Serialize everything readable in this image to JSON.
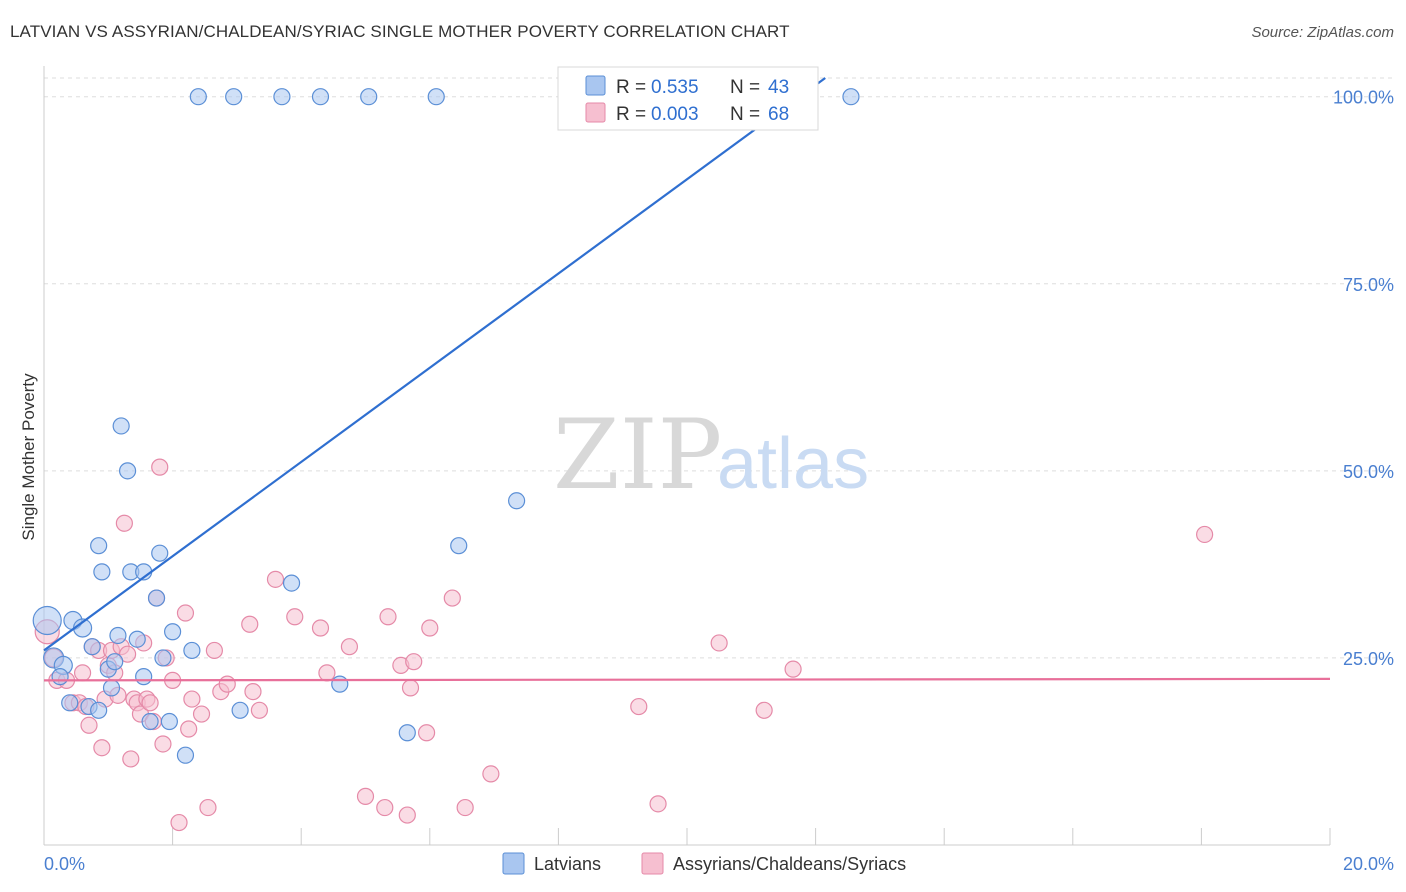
{
  "header": {
    "title": "LATVIAN VS ASSYRIAN/CHALDEAN/SYRIAC SINGLE MOTHER POVERTY CORRELATION CHART",
    "source": "Source: ZipAtlas.com"
  },
  "watermark": {
    "zip": "ZIP",
    "atlas": "atlas"
  },
  "colors": {
    "latvians_fill": "#a9c6f0",
    "latvians_stroke": "#5b8fd6",
    "latvians_line": "#2f6fd0",
    "assyrians_fill": "#f6bfd0",
    "assyrians_stroke": "#e58aa8",
    "assyrians_line": "#e8709a",
    "tick_label": "#4a7fd0",
    "grid": "#dddddd"
  },
  "legend": {
    "rows": [
      {
        "r_label": "R = ",
        "r_value": "0.535",
        "n_label": "N = ",
        "n_value": "43"
      },
      {
        "r_label": "R = ",
        "r_value": "0.003",
        "n_label": "N = ",
        "n_value": "68"
      }
    ]
  },
  "chart_data": {
    "type": "scatter",
    "title": "LATVIAN VS ASSYRIAN/CHALDEAN/SYRIAC SINGLE MOTHER POVERTY CORRELATION CHART",
    "xlabel": "",
    "ylabel": "Single Mother Poverty",
    "xlim": [
      0,
      20
    ],
    "ylim": [
      0,
      102.5
    ],
    "x_ticks": [
      0,
      2,
      4,
      6,
      8,
      10,
      12,
      14,
      16,
      18,
      20
    ],
    "x_tick_labels": [
      {
        "value": 0,
        "label": "0.0%"
      },
      {
        "value": 20,
        "label": "20.0%"
      }
    ],
    "y_ticks": [
      {
        "value": 25,
        "label": "25.0%"
      },
      {
        "value": 50,
        "label": "50.0%"
      },
      {
        "value": 75,
        "label": "75.0%"
      },
      {
        "value": 100,
        "label": "100.0%"
      }
    ],
    "grid": "horizontal dashed",
    "legend_position": "top-center",
    "series": [
      {
        "name": "Latvians",
        "r": 0.535,
        "n": 43,
        "trend": {
          "x0": 0.0,
          "y0": 26.0,
          "x1": 12.15,
          "y1": 102.5
        },
        "points": [
          [
            0.05,
            30.0,
            14
          ],
          [
            0.15,
            25.0,
            10
          ],
          [
            0.3,
            24.0,
            9
          ],
          [
            0.45,
            30.0,
            9
          ],
          [
            0.6,
            29.0,
            9
          ],
          [
            0.7,
            18.5,
            8
          ],
          [
            0.85,
            18.0,
            8
          ],
          [
            0.75,
            26.5,
            8
          ],
          [
            0.85,
            40.0,
            8
          ],
          [
            0.9,
            36.5,
            8
          ],
          [
            1.0,
            23.5,
            8
          ],
          [
            1.05,
            21.0,
            8
          ],
          [
            1.15,
            28.0,
            8
          ],
          [
            1.2,
            56.0,
            8
          ],
          [
            1.3,
            50.0,
            8
          ],
          [
            1.35,
            36.5,
            8
          ],
          [
            1.45,
            27.5,
            8
          ],
          [
            1.55,
            36.5,
            8
          ],
          [
            1.55,
            22.5,
            8
          ],
          [
            1.65,
            16.5,
            8
          ],
          [
            1.75,
            33.0,
            8
          ],
          [
            1.8,
            39.0,
            8
          ],
          [
            1.85,
            25.0,
            8
          ],
          [
            1.95,
            16.5,
            8
          ],
          [
            2.0,
            28.5,
            8
          ],
          [
            2.2,
            12.0,
            8
          ],
          [
            2.3,
            26.0,
            8
          ],
          [
            2.4,
            100.0,
            8
          ],
          [
            2.95,
            100.0,
            8
          ],
          [
            3.05,
            18.0,
            8
          ],
          [
            3.7,
            100.0,
            8
          ],
          [
            3.85,
            35.0,
            8
          ],
          [
            4.3,
            100.0,
            8
          ],
          [
            4.6,
            21.5,
            8
          ],
          [
            5.05,
            100.0,
            8
          ],
          [
            5.65,
            15.0,
            8
          ],
          [
            6.1,
            100.0,
            8
          ],
          [
            6.45,
            40.0,
            8
          ],
          [
            7.35,
            46.0,
            8
          ],
          [
            12.55,
            100.0,
            8
          ],
          [
            0.25,
            22.5,
            8
          ],
          [
            0.4,
            19.0,
            8
          ],
          [
            1.1,
            24.5,
            8
          ]
        ]
      },
      {
        "name": "Assyrians/Chaldeans/Syriacs",
        "r": 0.003,
        "n": 68,
        "trend": {
          "x0": 0.0,
          "y0": 22.0,
          "x1": 20.0,
          "y1": 22.2
        },
        "points": [
          [
            0.05,
            28.5,
            12
          ],
          [
            0.15,
            25.0,
            9
          ],
          [
            0.2,
            22.0,
            8
          ],
          [
            0.35,
            22.0,
            8
          ],
          [
            0.45,
            19.0,
            8
          ],
          [
            0.55,
            19.0,
            8
          ],
          [
            0.6,
            23.0,
            8
          ],
          [
            0.65,
            18.5,
            8
          ],
          [
            0.7,
            16.0,
            8
          ],
          [
            0.75,
            26.5,
            8
          ],
          [
            0.85,
            26.0,
            8
          ],
          [
            0.9,
            13.0,
            8
          ],
          [
            0.95,
            19.5,
            8
          ],
          [
            1.0,
            24.0,
            8
          ],
          [
            1.05,
            26.0,
            8
          ],
          [
            1.1,
            23.0,
            8
          ],
          [
            1.15,
            20.0,
            8
          ],
          [
            1.2,
            26.5,
            8
          ],
          [
            1.25,
            43.0,
            8
          ],
          [
            1.3,
            25.5,
            8
          ],
          [
            1.35,
            11.5,
            8
          ],
          [
            1.4,
            19.5,
            8
          ],
          [
            1.45,
            19.0,
            8
          ],
          [
            1.5,
            17.5,
            8
          ],
          [
            1.55,
            27.0,
            8
          ],
          [
            1.6,
            19.5,
            8
          ],
          [
            1.65,
            19.0,
            8
          ],
          [
            1.7,
            16.5,
            8
          ],
          [
            1.75,
            33.0,
            8
          ],
          [
            1.8,
            50.5,
            8
          ],
          [
            1.85,
            13.5,
            8
          ],
          [
            1.9,
            25.0,
            8
          ],
          [
            2.0,
            22.0,
            8
          ],
          [
            2.1,
            3.0,
            8
          ],
          [
            2.2,
            31.0,
            8
          ],
          [
            2.25,
            15.5,
            8
          ],
          [
            2.3,
            19.5,
            8
          ],
          [
            2.45,
            17.5,
            8
          ],
          [
            2.55,
            5.0,
            8
          ],
          [
            2.65,
            26.0,
            8
          ],
          [
            2.75,
            20.5,
            8
          ],
          [
            2.85,
            21.5,
            8
          ],
          [
            3.2,
            29.5,
            8
          ],
          [
            3.25,
            20.5,
            8
          ],
          [
            3.35,
            18.0,
            8
          ],
          [
            3.6,
            35.5,
            8
          ],
          [
            3.9,
            30.5,
            8
          ],
          [
            4.3,
            29.0,
            8
          ],
          [
            4.4,
            23.0,
            8
          ],
          [
            4.75,
            26.5,
            8
          ],
          [
            5.0,
            6.5,
            8
          ],
          [
            5.3,
            5.0,
            8
          ],
          [
            5.35,
            30.5,
            8
          ],
          [
            5.55,
            24.0,
            8
          ],
          [
            5.65,
            4.0,
            8
          ],
          [
            5.7,
            21.0,
            8
          ],
          [
            5.75,
            24.5,
            8
          ],
          [
            5.95,
            15.0,
            8
          ],
          [
            6.0,
            29.0,
            8
          ],
          [
            6.35,
            33.0,
            8
          ],
          [
            6.55,
            5.0,
            8
          ],
          [
            6.95,
            9.5,
            8
          ],
          [
            9.25,
            18.5,
            8
          ],
          [
            9.55,
            5.5,
            8
          ],
          [
            10.5,
            27.0,
            8
          ],
          [
            11.2,
            18.0,
            8
          ],
          [
            11.65,
            23.5,
            8
          ],
          [
            18.05,
            41.5,
            8
          ]
        ]
      }
    ]
  }
}
